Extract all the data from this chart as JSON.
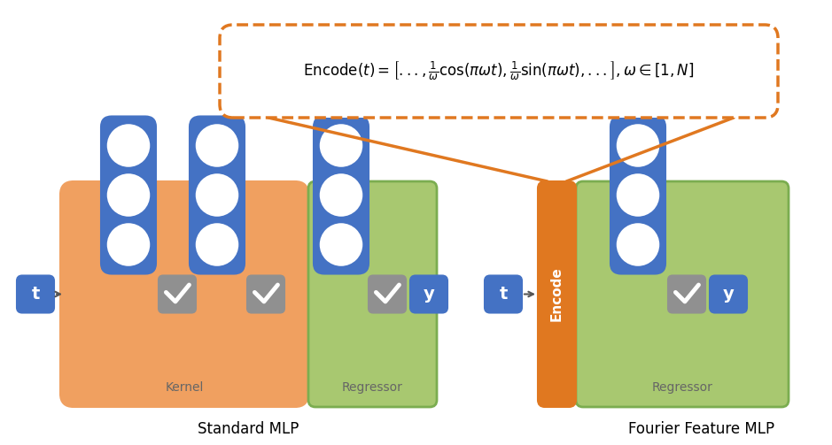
{
  "color_orange_bg": "#F0A060",
  "color_green_bg": "#A8C870",
  "color_blue_node": "#4472C4",
  "color_blue_light": "#5B9BD5",
  "color_gray": "#909090",
  "color_orange_encode": "#E07820",
  "color_white": "#FFFFFF",
  "color_black": "#000000",
  "color_green_edge": "#7BAD50",
  "label_kernel": "Kernel",
  "label_regressor": "Regressor",
  "label_standard": "Standard MLP",
  "label_fourier": "Fourier Feature MLP",
  "label_t": "t",
  "label_y": "y",
  "label_encode": "Encode"
}
